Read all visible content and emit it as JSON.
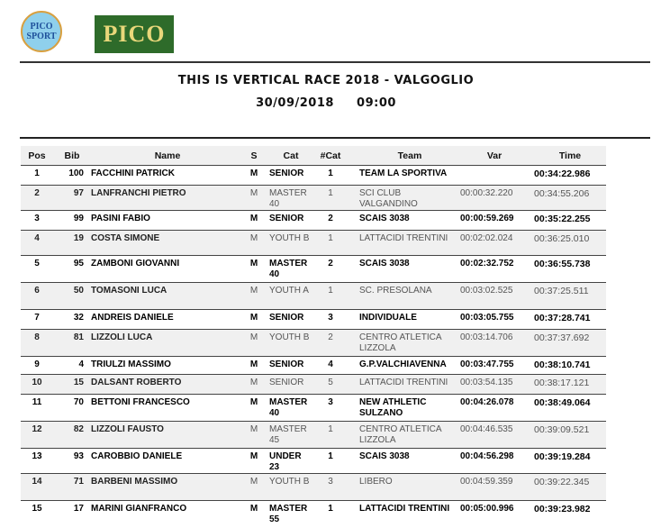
{
  "logos": {
    "left": "PICO SPORT",
    "right": "PICO"
  },
  "title": "THIS IS VERTICAL RACE 2018 - VALGOGLIO",
  "datetime": "30/09/2018     09:00",
  "columns": [
    "Pos",
    "Bib",
    "Name",
    "S",
    "Cat",
    "#Cat",
    "Team",
    "Var",
    "Time"
  ],
  "rows": [
    {
      "pos": "1",
      "bib": "100",
      "name": "FACCHINI PATRICK",
      "s": "M",
      "cat": "SENIOR",
      "ncat": "1",
      "team": "TEAM  LA SPORTIVA",
      "var": "",
      "time": "00:34:22.986"
    },
    {
      "pos": "2",
      "bib": "97",
      "name": "LANFRANCHI PIETRO",
      "s": "M",
      "cat": "MASTER 40",
      "ncat": "1",
      "team": "SCI CLUB VALGANDINO",
      "var": "00:00:32.220",
      "time": "00:34:55.206"
    },
    {
      "pos": "3",
      "bib": "99",
      "name": "PASINI FABIO",
      "s": "M",
      "cat": "SENIOR",
      "ncat": "2",
      "team": "SCAIS 3038",
      "var": "00:00:59.269",
      "time": "00:35:22.255"
    },
    {
      "pos": "4",
      "bib": "19",
      "name": "COSTA SIMONE",
      "s": "M",
      "cat": "YOUTH B",
      "ncat": "1",
      "team": "LATTACIDI TRENTINI",
      "var": "00:02:02.024",
      "time": "00:36:25.010"
    },
    {
      "pos": "5",
      "bib": "95",
      "name": "ZAMBONI GIOVANNI",
      "s": "M",
      "cat": "MASTER 40",
      "ncat": "2",
      "team": "SCAIS 3038",
      "var": "00:02:32.752",
      "time": "00:36:55.738"
    },
    {
      "pos": "6",
      "bib": "50",
      "name": "TOMASONI LUCA",
      "s": "M",
      "cat": "YOUTH A",
      "ncat": "1",
      "team": "SC. PRESOLANA",
      "var": "00:03:02.525",
      "time": "00:37:25.511"
    },
    {
      "pos": "7",
      "bib": "32",
      "name": "ANDREIS DANIELE",
      "s": "M",
      "cat": "SENIOR",
      "ncat": "3",
      "team": "INDIVIDUALE",
      "var": "00:03:05.755",
      "time": "00:37:28.741"
    },
    {
      "pos": "8",
      "bib": "81",
      "name": "LIZZOLI LUCA",
      "s": "M",
      "cat": "YOUTH B",
      "ncat": "2",
      "team": "CENTRO ATLETICA LIZZOLA",
      "var": "00:03:14.706",
      "time": "00:37:37.692"
    },
    {
      "pos": "9",
      "bib": "4",
      "name": "TRIULZI MASSIMO",
      "s": "M",
      "cat": "SENIOR",
      "ncat": "4",
      "team": "G.P.VALCHIAVENNA",
      "var": "00:03:47.755",
      "time": "00:38:10.741"
    },
    {
      "pos": "10",
      "bib": "15",
      "name": "DALSANT ROBERTO",
      "s": "M",
      "cat": "SENIOR",
      "ncat": "5",
      "team": "LATTACIDI TRENTINI",
      "var": "00:03:54.135",
      "time": "00:38:17.121"
    },
    {
      "pos": "11",
      "bib": "70",
      "name": "BETTONI FRANCESCO",
      "s": "M",
      "cat": "MASTER 40",
      "ncat": "3",
      "team": "NEW ATHLETIC SULZANO",
      "var": "00:04:26.078",
      "time": "00:38:49.064"
    },
    {
      "pos": "12",
      "bib": "82",
      "name": "LIZZOLI FAUSTO",
      "s": "M",
      "cat": "MASTER 45",
      "ncat": "1",
      "team": "CENTRO ATLETICA LIZZOLA",
      "var": "00:04:46.535",
      "time": "00:39:09.521"
    },
    {
      "pos": "13",
      "bib": "93",
      "name": "CAROBBIO DANIELE",
      "s": "M",
      "cat": "UNDER 23",
      "ncat": "1",
      "team": "SCAIS 3038",
      "var": "00:04:56.298",
      "time": "00:39:19.284"
    },
    {
      "pos": "14",
      "bib": "71",
      "name": "BARBENI MASSIMO",
      "s": "M",
      "cat": "YOUTH B",
      "ncat": "3",
      "team": "LIBERO",
      "var": "00:04:59.359",
      "time": "00:39:22.345"
    },
    {
      "pos": "15",
      "bib": "17",
      "name": "MARINI GIANFRANCO",
      "s": "M",
      "cat": "MASTER 55",
      "ncat": "1",
      "team": "LATTACIDI TRENTINI",
      "var": "00:05:00.996",
      "time": "00:39:23.982"
    }
  ]
}
